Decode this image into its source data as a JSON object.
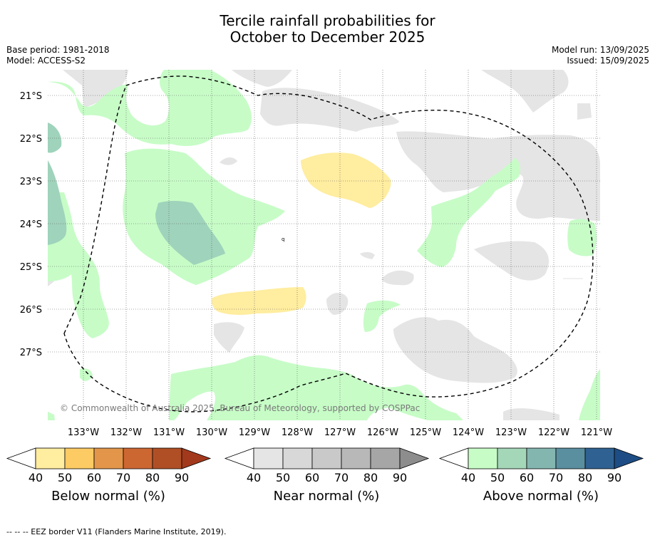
{
  "title_line1": "Tercile rainfall probabilities for",
  "title_line2": "October to December 2025",
  "base_period": "Base period: 1981-2018",
  "model": "Model: ACCESS-S2",
  "model_run": "Model run: 13/09/2025",
  "issued": "Issued: 15/09/2025",
  "copyright": "© Commonwealth of Australia 2025, Bureau of Meteorology, supported by COSPPac",
  "lat_labels": [
    "21°S",
    "22°S",
    "23°S",
    "24°S",
    "25°S",
    "26°S",
    "27°S"
  ],
  "lon_labels": [
    "133°W",
    "132°W",
    "131°W",
    "130°W",
    "129°W",
    "128°W",
    "127°W",
    "126°W",
    "125°W",
    "124°W",
    "123°W",
    "122°W",
    "121°W"
  ],
  "colorbars": {
    "below": {
      "title": "Below normal (%)",
      "ticks": [
        "40",
        "50",
        "60",
        "70",
        "80",
        "90"
      ],
      "colors": [
        "#ffeda0",
        "#fdcb63",
        "#e3964a",
        "#cd6732",
        "#b04f26",
        "#a3391c"
      ]
    },
    "near": {
      "title": "Near normal (%)",
      "ticks": [
        "40",
        "50",
        "60",
        "70",
        "80",
        "90"
      ],
      "colors": [
        "#e5e5e5",
        "#d8d8d8",
        "#c9c9c9",
        "#b8b8b8",
        "#a6a6a6",
        "#8d8d8d"
      ]
    },
    "above": {
      "title": "Above normal (%)",
      "ticks": [
        "40",
        "50",
        "60",
        "70",
        "80",
        "90"
      ],
      "colors": [
        "#c7fcc7",
        "#a4d7b8",
        "#84b6b0",
        "#5a8fa0",
        "#2f6292",
        "#1d4d84"
      ]
    }
  },
  "footer": "--  --  -- EEZ border V11 (Flanders Marine Institute, 2019)."
}
